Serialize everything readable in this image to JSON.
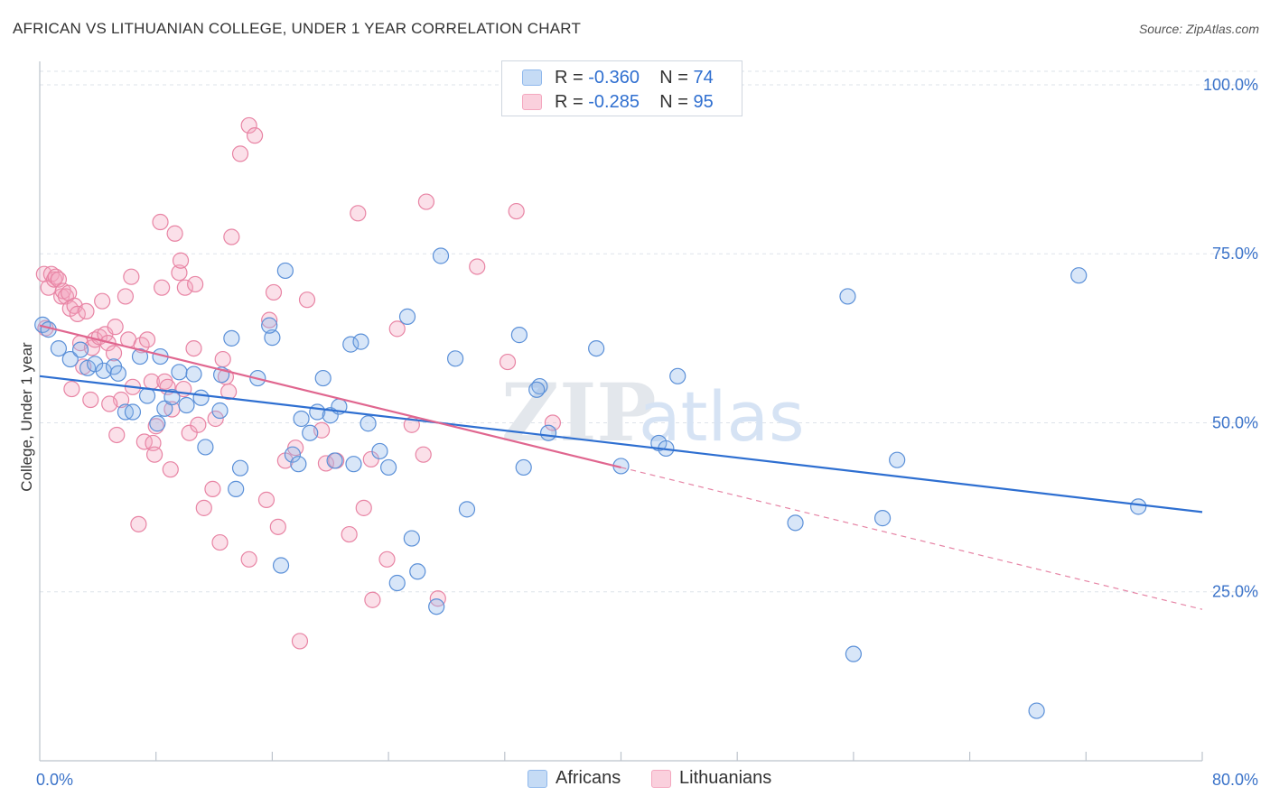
{
  "header": {
    "title": "AFRICAN VS LITHUANIAN COLLEGE, UNDER 1 YEAR CORRELATION CHART",
    "source": "Source: ZipAtlas.com"
  },
  "legend": {
    "rows": [
      {
        "r_label": "R =",
        "r_value": "-0.360",
        "n_label": "N =",
        "n_value": "74",
        "color": "#8fb8ec"
      },
      {
        "r_label": "R =",
        "r_value": "-0.285",
        "n_label": "N =",
        "n_value": "95",
        "color": "#f4a7bf"
      }
    ]
  },
  "bottom_legend": [
    {
      "label": "Africans",
      "color": "#8fb8ec"
    },
    {
      "label": "Lithuanians",
      "color": "#f4a7bf"
    }
  ],
  "watermark": {
    "zip": "ZIP",
    "atlas": "atlas"
  },
  "chart_data": {
    "type": "scatter",
    "title": "AFRICAN VS LITHUANIAN COLLEGE, UNDER 1 YEAR CORRELATION CHART",
    "xlabel": "",
    "ylabel": "College, Under 1 year",
    "xlim": [
      0,
      80
    ],
    "ylim": [
      0,
      102
    ],
    "x_tick_labels": [
      {
        "value": 0,
        "label": "0.0%"
      },
      {
        "value": 80,
        "label": "80.0%"
      }
    ],
    "y_tick_labels": [
      {
        "value": 25,
        "label": "25.0%"
      },
      {
        "value": 50,
        "label": "50.0%"
      },
      {
        "value": 75,
        "label": "75.0%"
      },
      {
        "value": 100,
        "label": "100.0%"
      }
    ],
    "x_minor_ticks": [
      8,
      16,
      24,
      32,
      40,
      48,
      56,
      64,
      72,
      80
    ],
    "grid": true,
    "legend_position": "top-center",
    "series": [
      {
        "name": "Africans",
        "color": "#8fb8ec",
        "stroke": "#5b90d8",
        "trend_color": "#2e6fd1",
        "trend": {
          "x": [
            0,
            80
          ],
          "y": [
            56.9,
            36.8
          ]
        },
        "points": [
          [
            0.2,
            64.5
          ],
          [
            0.6,
            63.8
          ],
          [
            1.3,
            61.0
          ],
          [
            2.1,
            59.4
          ],
          [
            3.3,
            58.1
          ],
          [
            2.8,
            60.8
          ],
          [
            3.8,
            58.7
          ],
          [
            4.4,
            57.7
          ],
          [
            5.1,
            58.3
          ],
          [
            5.4,
            57.3
          ],
          [
            5.9,
            51.6
          ],
          [
            6.4,
            51.6
          ],
          [
            6.9,
            59.8
          ],
          [
            7.4,
            54.0
          ],
          [
            8.1,
            49.9
          ],
          [
            8.3,
            59.8
          ],
          [
            8.6,
            52.1
          ],
          [
            9.1,
            53.8
          ],
          [
            9.6,
            57.5
          ],
          [
            10.1,
            52.6
          ],
          [
            10.6,
            57.2
          ],
          [
            11.1,
            53.7
          ],
          [
            11.4,
            46.4
          ],
          [
            12.4,
            51.8
          ],
          [
            12.5,
            57.1
          ],
          [
            13.2,
            62.5
          ],
          [
            13.5,
            40.2
          ],
          [
            13.8,
            43.3
          ],
          [
            15.0,
            56.6
          ],
          [
            16.0,
            62.6
          ],
          [
            16.6,
            28.9
          ],
          [
            15.8,
            64.4
          ],
          [
            16.9,
            72.5
          ],
          [
            17.4,
            45.3
          ],
          [
            17.8,
            43.9
          ],
          [
            18.0,
            50.6
          ],
          [
            18.6,
            48.5
          ],
          [
            19.1,
            51.6
          ],
          [
            19.5,
            56.6
          ],
          [
            20.0,
            51.1
          ],
          [
            20.3,
            44.4
          ],
          [
            20.6,
            52.4
          ],
          [
            21.4,
            61.6
          ],
          [
            21.6,
            43.9
          ],
          [
            22.1,
            62.0
          ],
          [
            22.6,
            49.9
          ],
          [
            23.4,
            45.8
          ],
          [
            24.0,
            43.4
          ],
          [
            24.6,
            26.3
          ],
          [
            25.3,
            65.7
          ],
          [
            25.6,
            32.9
          ],
          [
            26.0,
            28.0
          ],
          [
            27.3,
            22.8
          ],
          [
            27.6,
            74.7
          ],
          [
            28.6,
            59.5
          ],
          [
            29.4,
            37.2
          ],
          [
            33.0,
            63.0
          ],
          [
            33.3,
            43.4
          ],
          [
            34.4,
            55.4
          ],
          [
            34.2,
            54.9
          ],
          [
            35.0,
            48.5
          ],
          [
            38.3,
            61.0
          ],
          [
            40.0,
            43.6
          ],
          [
            42.6,
            47.0
          ],
          [
            43.1,
            46.2
          ],
          [
            43.9,
            56.9
          ],
          [
            52.0,
            35.2
          ],
          [
            55.6,
            68.7
          ],
          [
            56.0,
            15.8
          ],
          [
            58.0,
            35.9
          ],
          [
            59.0,
            44.5
          ],
          [
            71.5,
            71.8
          ],
          [
            75.6,
            37.6
          ],
          [
            68.6,
            7.4
          ]
        ]
      },
      {
        "name": "Lithuanians",
        "color": "#f4a7bf",
        "stroke": "#e884a4",
        "trend_color": "#e0668f",
        "trend": {
          "x": [
            0,
            40
          ],
          "y": [
            64.4,
            43.4
          ]
        },
        "trend_extension": {
          "x": [
            40,
            80
          ],
          "y": [
            43.4,
            22.4
          ]
        },
        "points": [
          [
            0.3,
            72.0
          ],
          [
            0.4,
            64.0
          ],
          [
            0.6,
            70.0
          ],
          [
            0.8,
            72.0
          ],
          [
            1.0,
            71.2
          ],
          [
            1.1,
            71.6
          ],
          [
            1.3,
            71.2
          ],
          [
            1.5,
            68.7
          ],
          [
            1.6,
            69.5
          ],
          [
            1.8,
            68.7
          ],
          [
            2.0,
            69.2
          ],
          [
            2.1,
            66.9
          ],
          [
            2.4,
            67.3
          ],
          [
            2.6,
            66.1
          ],
          [
            2.8,
            61.8
          ],
          [
            3.0,
            58.3
          ],
          [
            3.2,
            66.5
          ],
          [
            3.5,
            53.4
          ],
          [
            3.6,
            61.1
          ],
          [
            3.8,
            62.3
          ],
          [
            4.1,
            62.7
          ],
          [
            4.3,
            68.0
          ],
          [
            4.5,
            63.1
          ],
          [
            4.7,
            61.8
          ],
          [
            5.1,
            60.3
          ],
          [
            5.2,
            64.2
          ],
          [
            5.3,
            48.2
          ],
          [
            5.6,
            53.4
          ],
          [
            5.9,
            68.7
          ],
          [
            6.1,
            62.3
          ],
          [
            6.3,
            71.6
          ],
          [
            6.4,
            55.3
          ],
          [
            6.8,
            35.0
          ],
          [
            7.0,
            61.5
          ],
          [
            7.2,
            47.2
          ],
          [
            7.4,
            62.3
          ],
          [
            7.7,
            56.1
          ],
          [
            7.8,
            47.0
          ],
          [
            7.9,
            45.3
          ],
          [
            8.3,
            79.7
          ],
          [
            8.4,
            70.0
          ],
          [
            8.6,
            56.1
          ],
          [
            8.8,
            55.3
          ],
          [
            9.0,
            43.1
          ],
          [
            9.1,
            52.0
          ],
          [
            9.3,
            78.0
          ],
          [
            9.6,
            72.2
          ],
          [
            9.7,
            74.0
          ],
          [
            9.9,
            55.0
          ],
          [
            10.0,
            70.0
          ],
          [
            10.3,
            48.5
          ],
          [
            10.6,
            61.0
          ],
          [
            10.7,
            70.5
          ],
          [
            10.9,
            49.7
          ],
          [
            11.3,
            37.4
          ],
          [
            11.9,
            40.2
          ],
          [
            12.1,
            50.6
          ],
          [
            12.4,
            32.3
          ],
          [
            12.6,
            59.4
          ],
          [
            12.8,
            56.8
          ],
          [
            13.0,
            54.6
          ],
          [
            13.2,
            77.5
          ],
          [
            13.8,
            89.8
          ],
          [
            14.4,
            94.0
          ],
          [
            14.8,
            92.5
          ],
          [
            14.4,
            29.8
          ],
          [
            15.6,
            38.6
          ],
          [
            15.8,
            65.2
          ],
          [
            16.1,
            69.3
          ],
          [
            16.4,
            34.6
          ],
          [
            16.9,
            44.4
          ],
          [
            17.6,
            46.3
          ],
          [
            17.9,
            17.7
          ],
          [
            18.4,
            68.2
          ],
          [
            19.4,
            48.9
          ],
          [
            19.7,
            44.0
          ],
          [
            20.4,
            44.4
          ],
          [
            21.3,
            33.5
          ],
          [
            21.9,
            81.0
          ],
          [
            22.3,
            37.4
          ],
          [
            22.8,
            44.6
          ],
          [
            22.9,
            23.8
          ],
          [
            23.9,
            29.8
          ],
          [
            24.6,
            63.9
          ],
          [
            25.6,
            49.7
          ],
          [
            26.6,
            82.7
          ],
          [
            26.4,
            45.3
          ],
          [
            27.4,
            24.0
          ],
          [
            30.1,
            73.1
          ],
          [
            32.2,
            59.0
          ],
          [
            32.8,
            81.3
          ],
          [
            35.3,
            50.0
          ],
          [
            2.2,
            55.0
          ],
          [
            4.8,
            52.8
          ],
          [
            8.0,
            49.5
          ]
        ]
      }
    ]
  }
}
